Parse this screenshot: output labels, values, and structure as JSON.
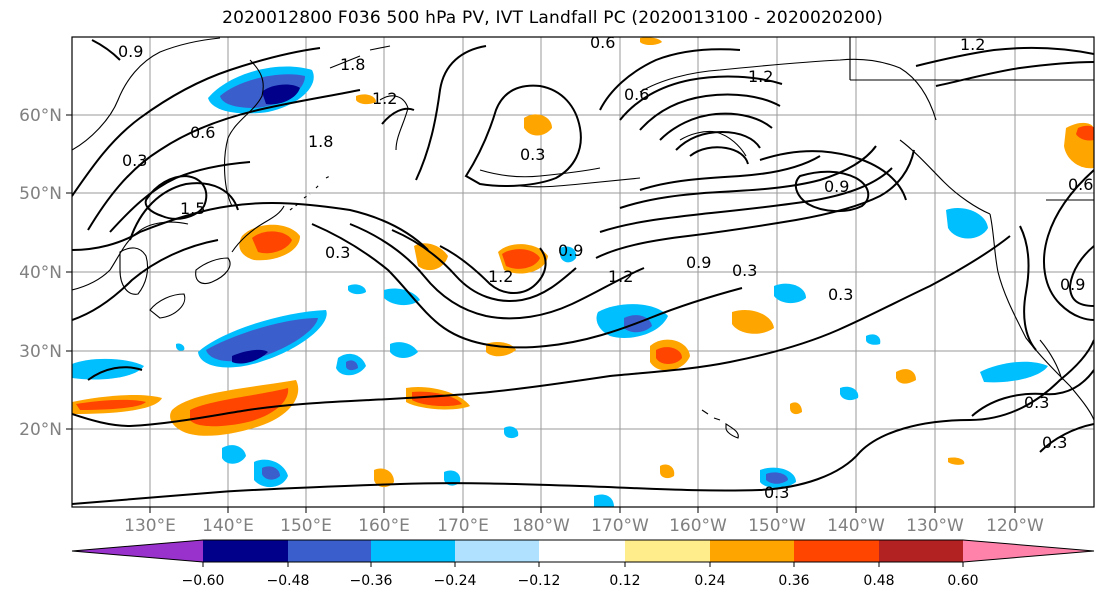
{
  "title": "2020012800 F036 500 hPa PV, IVT Landfall PC (2020013100 - 2020020200)",
  "lat_labels": [
    "60°N",
    "50°N",
    "40°N",
    "30°N",
    "20°N"
  ],
  "lon_labels": [
    "130°E",
    "140°E",
    "150°E",
    "160°E",
    "170°E",
    "180°W",
    "170°W",
    "160°W",
    "150°W",
    "140°W",
    "130°W",
    "120°W"
  ],
  "colorbar": {
    "ticks": [
      "−0.60",
      "−0.48",
      "−0.36",
      "−0.24",
      "−0.12",
      "0.12",
      "0.24",
      "0.36",
      "0.48",
      "0.60"
    ],
    "colors": [
      "#9932CC",
      "#00008B",
      "#3A5FCD",
      "#00BFFF",
      "#B0E2FF",
      "#FFFFFF",
      "#FFEC8B",
      "#FFA500",
      "#FF4500",
      "#B22222",
      "#FF82AB"
    ]
  },
  "contour_labels": [
    "0.9",
    "1.8",
    "1.2",
    "0.6",
    "0.3",
    "1.8",
    "0.6",
    "1.5",
    "0.3",
    "0.3",
    "1.2",
    "0.9",
    "1.2",
    "0.9",
    "0.3",
    "0.3",
    "0.9",
    "1.2",
    "0.6",
    "0.9",
    "0.6",
    "0.3",
    "0.3",
    "0.3",
    "1.2"
  ]
}
